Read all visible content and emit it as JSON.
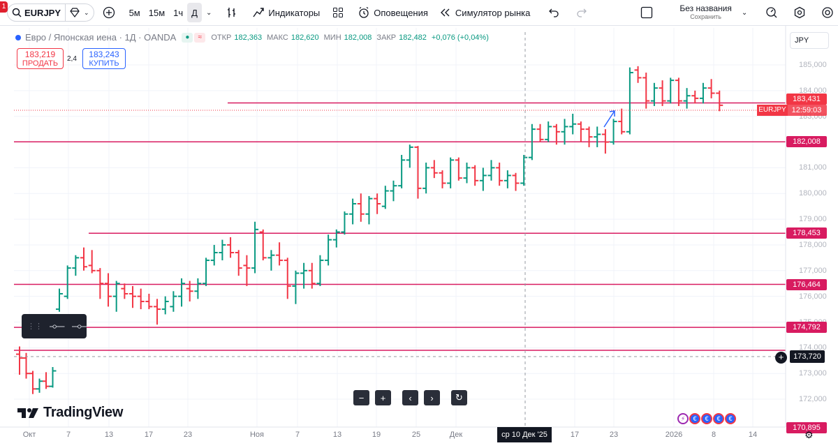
{
  "toolbar": {
    "badge": "1",
    "symbol": "EURJPY",
    "intervals": [
      "5м",
      "15м",
      "1ч",
      "Д"
    ],
    "active_interval": "Д",
    "indicators_label": "Индикаторы",
    "alerts_label": "Оповещения",
    "replay_label": "Симулятор рынка",
    "doc_name": "Без названия",
    "doc_status": "Сохранить"
  },
  "legend": {
    "title": "Евро / Японская иена · 1Д · OANDA",
    "open_label": "ОТКР",
    "open": "182,363",
    "high_label": "МАКС",
    "high": "182,620",
    "low_label": "МИН",
    "low": "182,008",
    "close_label": "ЗАКР",
    "close": "182,482",
    "change": "+0,076 (+0,04%)"
  },
  "trade": {
    "sell_price": "183,219",
    "sell_label": "ПРОДАТЬ",
    "spread": "2,4",
    "buy_price": "183,243",
    "buy_label": "КУПИТЬ"
  },
  "currency": "JPY",
  "brand": "TradingView",
  "crosshair": {
    "date": "ср 10 Дек '25",
    "price": "173,720"
  },
  "current": {
    "symbol_tag": "EURJPY",
    "price": "183,431",
    "countdown": "12:59:03"
  },
  "colors": {
    "up": "#089981",
    "down": "#f23645",
    "level": "#d81b60",
    "accent": "#2962ff"
  },
  "chart_data": {
    "type": "ohlc",
    "y_ticks": [
      "185,000",
      "184,000",
      "183,000",
      "182,000",
      "181,000",
      "180,000",
      "179,000",
      "178,000",
      "177,000",
      "176,000",
      "175,000",
      "174,000",
      "173,000",
      "172,000"
    ],
    "x_ticks": [
      "Окт",
      "7",
      "13",
      "17",
      "23",
      "Ноя",
      "7",
      "13",
      "19",
      "25",
      "Дек",
      "17",
      "23",
      "2026",
      "8",
      "14"
    ],
    "horizontal_levels": [
      "182,008",
      "178,453",
      "176,464",
      "174,792",
      "170,895"
    ],
    "bars": [
      {
        "o": 173.75,
        "h": 174.05,
        "l": 172.95,
        "c": 173.6
      },
      {
        "o": 173.6,
        "h": 173.8,
        "l": 172.8,
        "c": 173.0
      },
      {
        "o": 173.0,
        "h": 173.1,
        "l": 172.2,
        "c": 172.4
      },
      {
        "o": 172.4,
        "h": 172.8,
        "l": 172.25,
        "c": 172.7
      },
      {
        "o": 172.7,
        "h": 173.05,
        "l": 172.4,
        "c": 172.5
      },
      {
        "o": 172.5,
        "h": 173.25,
        "l": 172.45,
        "c": 173.1
      },
      {
        "o": 175.5,
        "h": 176.3,
        "l": 175.4,
        "c": 176.1
      },
      {
        "o": 176.0,
        "h": 177.2,
        "l": 175.9,
        "c": 177.1
      },
      {
        "o": 177.1,
        "h": 177.6,
        "l": 176.8,
        "c": 177.5
      },
      {
        "o": 177.5,
        "h": 177.9,
        "l": 177.0,
        "c": 177.15
      },
      {
        "o": 177.2,
        "h": 177.8,
        "l": 176.9,
        "c": 177.0
      },
      {
        "o": 177.0,
        "h": 177.1,
        "l": 175.9,
        "c": 176.5
      },
      {
        "o": 176.5,
        "h": 176.9,
        "l": 175.6,
        "c": 176.0
      },
      {
        "o": 176.0,
        "h": 176.6,
        "l": 175.4,
        "c": 176.5
      },
      {
        "o": 176.3,
        "h": 176.5,
        "l": 175.9,
        "c": 176.1
      },
      {
        "o": 176.1,
        "h": 176.4,
        "l": 175.55,
        "c": 176.0
      },
      {
        "o": 176.0,
        "h": 176.3,
        "l": 175.5,
        "c": 175.8
      },
      {
        "o": 175.8,
        "h": 176.1,
        "l": 175.5,
        "c": 175.6
      },
      {
        "o": 175.6,
        "h": 175.9,
        "l": 174.9,
        "c": 175.5
      },
      {
        "o": 175.5,
        "h": 176.0,
        "l": 175.3,
        "c": 175.8
      },
      {
        "o": 175.6,
        "h": 176.2,
        "l": 175.4,
        "c": 176.0
      },
      {
        "o": 176.0,
        "h": 176.7,
        "l": 175.6,
        "c": 176.5
      },
      {
        "o": 176.3,
        "h": 176.6,
        "l": 175.8,
        "c": 176.2
      },
      {
        "o": 176.2,
        "h": 176.7,
        "l": 175.9,
        "c": 176.5
      },
      {
        "o": 176.5,
        "h": 177.5,
        "l": 176.4,
        "c": 177.4
      },
      {
        "o": 177.4,
        "h": 178.0,
        "l": 177.2,
        "c": 177.7
      },
      {
        "o": 177.7,
        "h": 178.2,
        "l": 177.4,
        "c": 178.0
      },
      {
        "o": 178.0,
        "h": 178.3,
        "l": 177.5,
        "c": 177.7
      },
      {
        "o": 177.7,
        "h": 177.8,
        "l": 176.8,
        "c": 177.1
      },
      {
        "o": 177.2,
        "h": 177.6,
        "l": 176.4,
        "c": 177.1
      },
      {
        "o": 177.1,
        "h": 178.9,
        "l": 176.9,
        "c": 178.6
      },
      {
        "o": 178.5,
        "h": 178.6,
        "l": 177.4,
        "c": 177.5
      },
      {
        "o": 177.5,
        "h": 177.8,
        "l": 177.0,
        "c": 177.6
      },
      {
        "o": 177.6,
        "h": 178.1,
        "l": 177.2,
        "c": 177.4
      },
      {
        "o": 177.4,
        "h": 177.5,
        "l": 175.9,
        "c": 176.4
      },
      {
        "o": 176.4,
        "h": 177.0,
        "l": 175.7,
        "c": 176.9
      },
      {
        "o": 176.9,
        "h": 177.3,
        "l": 176.3,
        "c": 177.0
      },
      {
        "o": 177.0,
        "h": 177.3,
        "l": 176.3,
        "c": 176.5
      },
      {
        "o": 176.5,
        "h": 177.6,
        "l": 176.4,
        "c": 177.4
      },
      {
        "o": 177.4,
        "h": 178.4,
        "l": 177.2,
        "c": 178.2
      },
      {
        "o": 178.2,
        "h": 178.6,
        "l": 177.9,
        "c": 178.5
      },
      {
        "o": 178.5,
        "h": 179.3,
        "l": 178.4,
        "c": 179.2
      },
      {
        "o": 179.2,
        "h": 179.8,
        "l": 178.8,
        "c": 179.6
      },
      {
        "o": 179.6,
        "h": 180.0,
        "l": 178.9,
        "c": 179.2
      },
      {
        "o": 179.2,
        "h": 179.9,
        "l": 178.8,
        "c": 179.8
      },
      {
        "o": 179.8,
        "h": 180.0,
        "l": 179.2,
        "c": 179.6
      },
      {
        "o": 179.5,
        "h": 180.3,
        "l": 179.4,
        "c": 180.1
      },
      {
        "o": 180.1,
        "h": 180.5,
        "l": 179.7,
        "c": 180.3
      },
      {
        "o": 180.3,
        "h": 181.5,
        "l": 180.2,
        "c": 181.3
      },
      {
        "o": 181.3,
        "h": 181.9,
        "l": 181.0,
        "c": 181.8
      },
      {
        "o": 181.8,
        "h": 181.85,
        "l": 179.8,
        "c": 180.2
      },
      {
        "o": 180.2,
        "h": 181.2,
        "l": 180.0,
        "c": 181.0
      },
      {
        "o": 181.0,
        "h": 181.3,
        "l": 180.6,
        "c": 180.8
      },
      {
        "o": 180.8,
        "h": 180.9,
        "l": 180.2,
        "c": 180.4
      },
      {
        "o": 180.4,
        "h": 181.4,
        "l": 180.2,
        "c": 181.3
      },
      {
        "o": 181.3,
        "h": 181.4,
        "l": 180.5,
        "c": 180.6
      },
      {
        "o": 180.6,
        "h": 181.2,
        "l": 180.4,
        "c": 181.0
      },
      {
        "o": 181.0,
        "h": 181.1,
        "l": 180.3,
        "c": 180.5
      },
      {
        "o": 180.5,
        "h": 181.0,
        "l": 180.1,
        "c": 180.7
      },
      {
        "o": 180.7,
        "h": 181.3,
        "l": 180.5,
        "c": 181.0
      },
      {
        "o": 181.0,
        "h": 181.2,
        "l": 180.3,
        "c": 180.5
      },
      {
        "o": 180.5,
        "h": 180.9,
        "l": 180.2,
        "c": 180.7
      },
      {
        "o": 180.7,
        "h": 180.8,
        "l": 180.1,
        "c": 180.4
      },
      {
        "o": 180.4,
        "h": 181.5,
        "l": 180.3,
        "c": 181.4
      },
      {
        "o": 181.4,
        "h": 182.7,
        "l": 181.3,
        "c": 182.5
      },
      {
        "o": 182.5,
        "h": 182.7,
        "l": 182.0,
        "c": 182.1
      },
      {
        "o": 182.1,
        "h": 182.8,
        "l": 182.0,
        "c": 182.6
      },
      {
        "o": 182.6,
        "h": 182.7,
        "l": 181.9,
        "c": 182.4
      },
      {
        "o": 182.4,
        "h": 182.9,
        "l": 181.9,
        "c": 182.6
      },
      {
        "o": 182.6,
        "h": 183.1,
        "l": 182.3,
        "c": 182.7
      },
      {
        "o": 182.7,
        "h": 182.8,
        "l": 182.0,
        "c": 182.5
      },
      {
        "o": 182.5,
        "h": 182.6,
        "l": 181.8,
        "c": 182.2
      },
      {
        "o": 182.2,
        "h": 182.6,
        "l": 181.8,
        "c": 182.3
      },
      {
        "o": 182.3,
        "h": 182.5,
        "l": 181.55,
        "c": 182.0
      },
      {
        "o": 182.0,
        "h": 182.9,
        "l": 181.9,
        "c": 182.8
      },
      {
        "o": 182.8,
        "h": 183.3,
        "l": 182.3,
        "c": 182.4
      },
      {
        "o": 182.4,
        "h": 184.9,
        "l": 182.3,
        "c": 184.7
      },
      {
        "o": 184.8,
        "h": 184.95,
        "l": 184.3,
        "c": 184.5
      },
      {
        "o": 184.5,
        "h": 184.7,
        "l": 183.3,
        "c": 183.6
      },
      {
        "o": 183.6,
        "h": 184.3,
        "l": 183.4,
        "c": 184.1
      },
      {
        "o": 184.1,
        "h": 184.4,
        "l": 183.4,
        "c": 183.6
      },
      {
        "o": 183.6,
        "h": 184.5,
        "l": 183.5,
        "c": 184.4
      },
      {
        "o": 184.4,
        "h": 184.5,
        "l": 183.4,
        "c": 183.6
      },
      {
        "o": 183.6,
        "h": 184.1,
        "l": 183.3,
        "c": 183.8
      },
      {
        "o": 183.8,
        "h": 184.0,
        "l": 183.5,
        "c": 183.7
      },
      {
        "o": 183.7,
        "h": 184.3,
        "l": 183.5,
        "c": 184.1
      },
      {
        "o": 184.1,
        "h": 184.45,
        "l": 183.7,
        "c": 183.9
      },
      {
        "o": 183.9,
        "h": 184.0,
        "l": 183.2,
        "c": 183.43
      }
    ]
  },
  "events": [
    "⚡",
    "€",
    "€",
    "€",
    "€"
  ]
}
